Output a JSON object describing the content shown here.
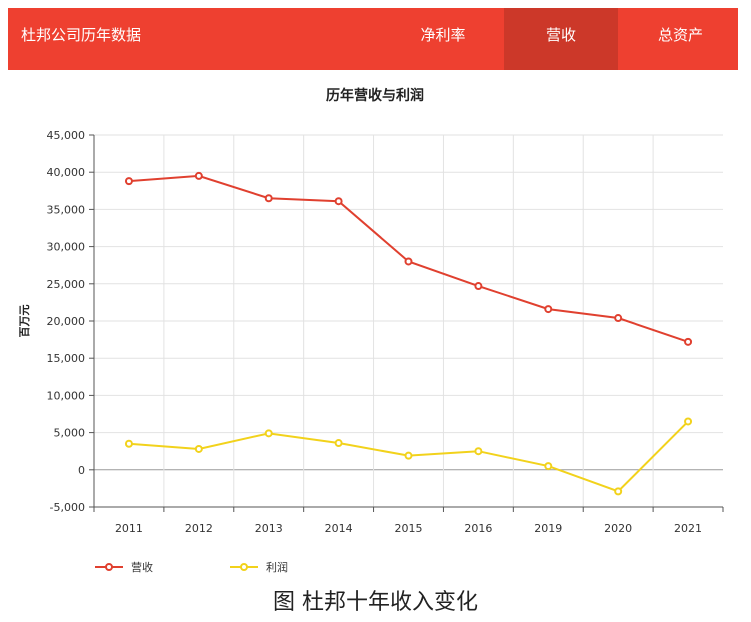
{
  "header": {
    "title": "杜邦公司历年数据",
    "tabs": [
      {
        "label": "净利率",
        "active": false
      },
      {
        "label": "营收",
        "active": true
      },
      {
        "label": "总资产",
        "active": false
      }
    ]
  },
  "colors": {
    "header_bg": "#ee4030",
    "active_tab_bg": "#cc3829",
    "revenue": "#e0402f",
    "profit": "#f2d21b"
  },
  "chart_data": {
    "type": "line",
    "title": "历年营收与利润",
    "ylabel": "百万元",
    "xlabel": "",
    "categories": [
      "2011",
      "2012",
      "2013",
      "2014",
      "2015",
      "2016",
      "2019",
      "2020",
      "2021"
    ],
    "ylim": [
      -5000,
      45000
    ],
    "yticks": [
      -5000,
      0,
      5000,
      10000,
      15000,
      20000,
      25000,
      30000,
      35000,
      40000,
      45000
    ],
    "ytick_labels": [
      "-5,000",
      "0",
      "5,000",
      "10,000",
      "15,000",
      "20,000",
      "25,000",
      "30,000",
      "35,000",
      "40,000",
      "45,000"
    ],
    "grid": true,
    "legend_position": "bottom-left",
    "series": [
      {
        "name": "营收",
        "color": "#e0402f",
        "values": [
          38800,
          39500,
          36500,
          36100,
          28000,
          24700,
          21600,
          20400,
          17200
        ]
      },
      {
        "name": "利润",
        "color": "#f2d21b",
        "values": [
          3500,
          2800,
          4900,
          3600,
          1900,
          2500,
          500,
          -2900,
          6500
        ]
      }
    ]
  },
  "caption": "图 杜邦十年收入变化"
}
